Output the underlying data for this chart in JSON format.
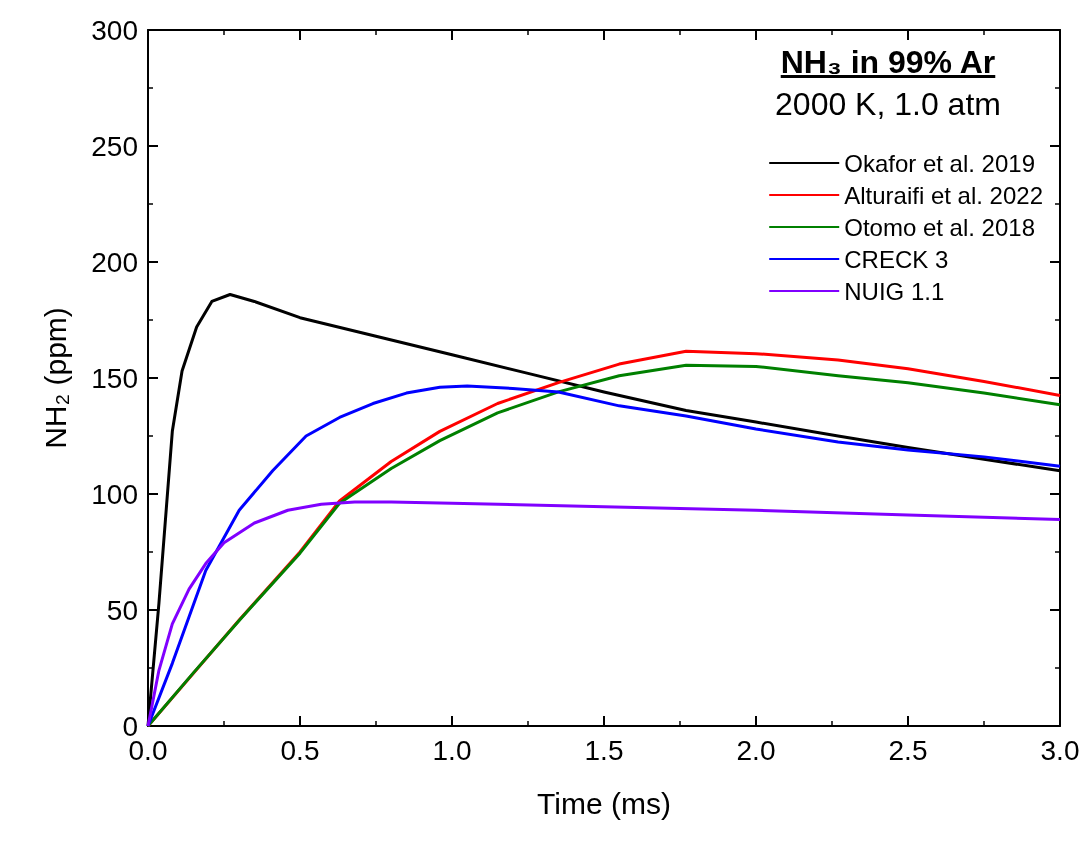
{
  "chart_data": {
    "type": "line",
    "xlabel": "Time (ms)",
    "ylabel": "NH₂ (ppm)",
    "legend_title": "NH₃ in 99% Ar",
    "annotations": [
      "2000 K, 1.0 atm"
    ],
    "xlim": [
      0,
      3
    ],
    "ylim": [
      0,
      300
    ],
    "xticks": [
      {
        "value": 0,
        "label": "0.0"
      },
      {
        "value": 0.5,
        "label": "0.5"
      },
      {
        "value": 1,
        "label": "1.0"
      },
      {
        "value": 1.5,
        "label": "1.5"
      },
      {
        "value": 2,
        "label": "2.0"
      },
      {
        "value": 2.5,
        "label": "2.5"
      },
      {
        "value": 3,
        "label": "3.0"
      }
    ],
    "yticks": [
      0,
      50,
      100,
      150,
      200,
      250,
      300
    ],
    "legend": "top right",
    "marker": "none",
    "line_style": "solid",
    "grid": false,
    "series": [
      {
        "name": "Okafor et al. 2019",
        "color": "#000000",
        "x": [
          0,
          0.036,
          0.08,
          0.112,
          0.16,
          0.21,
          0.27,
          0.35,
          0.5,
          0.75,
          1.0,
          1.25,
          1.5,
          1.77,
          2.0,
          2.27,
          2.5,
          2.75,
          3.0
        ],
        "values": [
          0,
          53,
          127,
          153,
          172,
          183,
          186,
          183,
          176,
          168,
          160,
          152,
          144,
          136,
          131,
          125,
          120,
          115,
          110
        ]
      },
      {
        "name": "Alturaifi et al. 2022",
        "color": "#ff0000",
        "x": [
          0,
          0.3,
          0.5,
          0.63,
          0.8,
          0.96,
          1.15,
          1.35,
          1.55,
          1.77,
          2.0,
          2.27,
          2.5,
          2.75,
          3.0
        ],
        "values": [
          0,
          45.7,
          75,
          97,
          114,
          127,
          139,
          148,
          156,
          161.5,
          160.5,
          157.8,
          154,
          148.5,
          142.5
        ]
      },
      {
        "name": "Otomo et al. 2018",
        "color": "#008000",
        "x": [
          0,
          0.15,
          0.3,
          0.5,
          0.63,
          0.8,
          0.96,
          1.15,
          1.35,
          1.55,
          1.77,
          2.0,
          2.27,
          2.5,
          2.75,
          3.0
        ],
        "values": [
          0,
          23,
          45.5,
          74.5,
          96,
          111,
          123,
          135,
          144,
          151,
          155.5,
          155,
          151,
          148,
          143.5,
          138.5
        ]
      },
      {
        "name": "CRECK 3",
        "color": "#0000ff",
        "x": [
          0,
          0.08,
          0.19,
          0.3,
          0.41,
          0.52,
          0.63,
          0.74,
          0.85,
          0.96,
          1.05,
          1.2,
          1.35,
          1.55,
          1.77,
          2.0,
          2.27,
          2.5,
          2.75,
          3.0
        ],
        "values": [
          0,
          27,
          67,
          93,
          110,
          125,
          133,
          139,
          143.5,
          146,
          146.5,
          145.5,
          144,
          138,
          133.6,
          128,
          122.4,
          119,
          116,
          112
        ]
      },
      {
        "name": "NUIG 1.1",
        "color": "#8000ff",
        "x": [
          0,
          0.036,
          0.08,
          0.135,
          0.19,
          0.25,
          0.35,
          0.46,
          0.57,
          0.68,
          0.8,
          1.0,
          1.5,
          2.0,
          2.5,
          3.0
        ],
        "values": [
          0,
          24,
          44,
          59,
          70,
          79,
          87.5,
          93,
          95.6,
          96.5,
          96.5,
          96,
          94.5,
          93,
          91,
          89
        ]
      }
    ]
  }
}
